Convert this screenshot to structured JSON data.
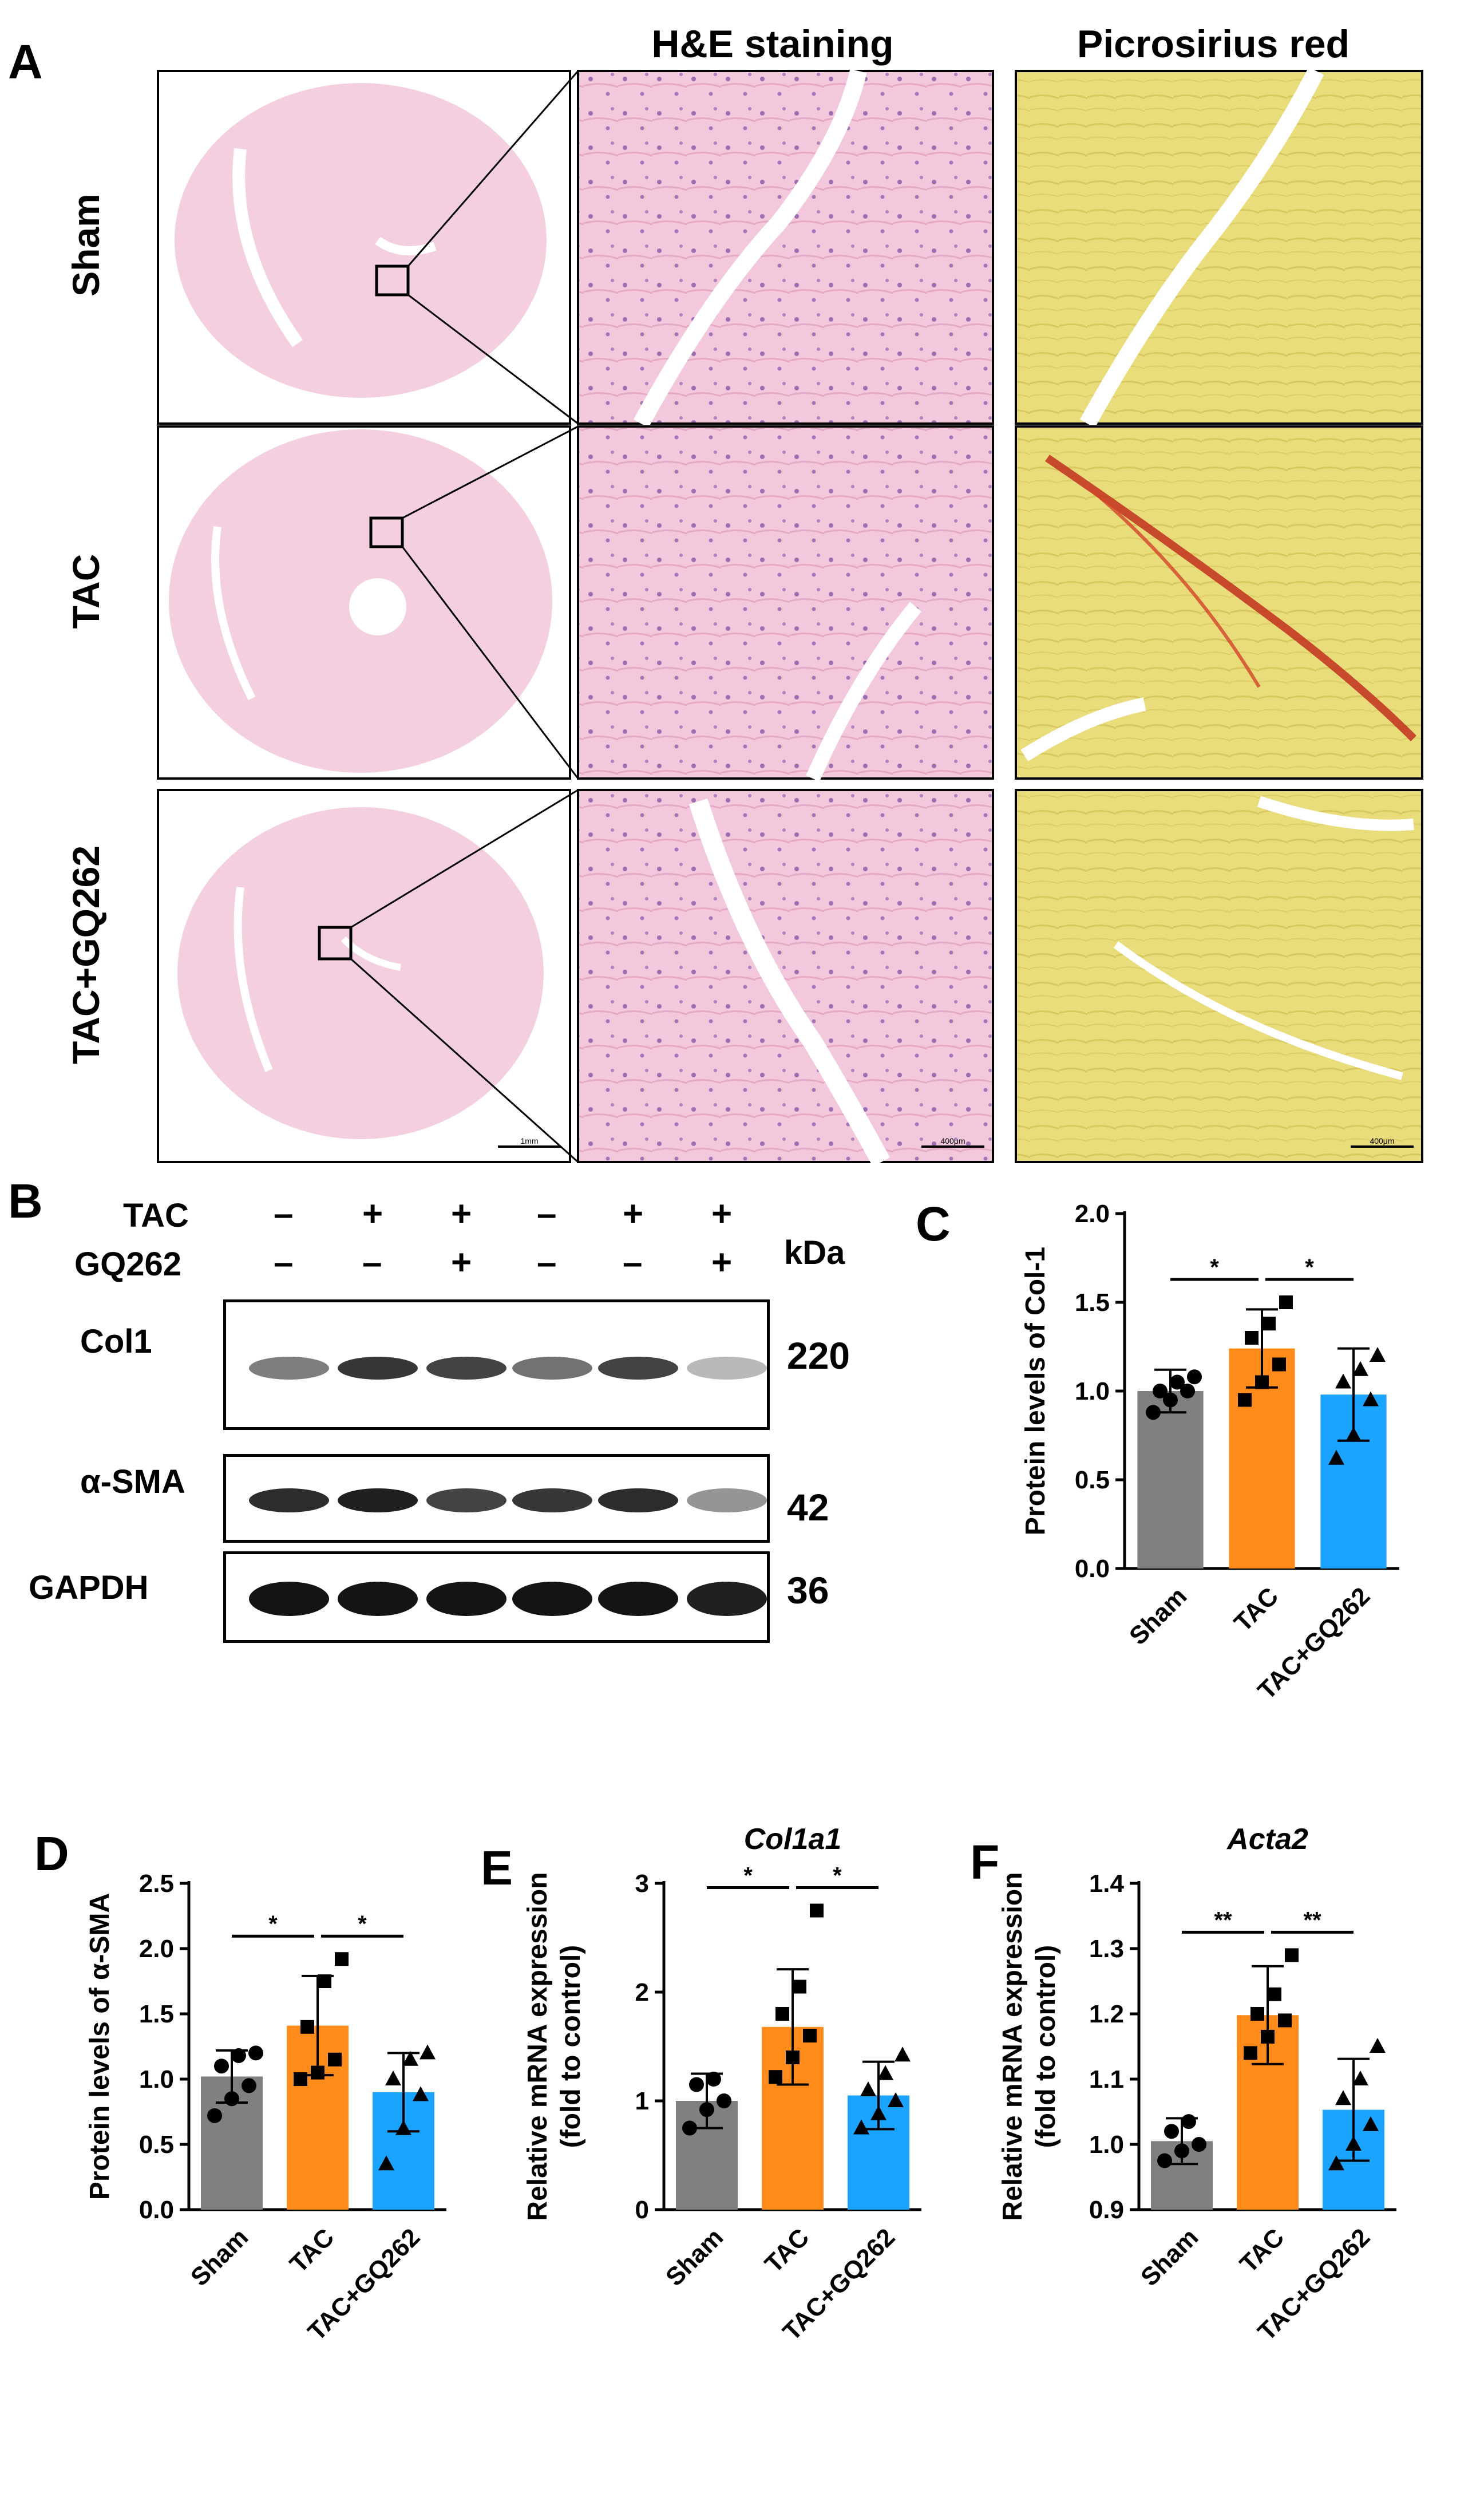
{
  "panels": {
    "A": "A",
    "B": "B",
    "C": "C",
    "D": "D",
    "E": "E",
    "F": "F"
  },
  "histology": {
    "columns": [
      "H&E staining",
      "Picrosirius red"
    ],
    "rows": [
      "Sham",
      "TAC",
      "TAC+GQ262"
    ],
    "scalebars": {
      "overview": "1mm",
      "he_zoom": "400μm",
      "psr": "400μm"
    }
  },
  "western_blot": {
    "treatments": [
      {
        "label": "TAC",
        "values": [
          "–",
          "+",
          "+",
          "–",
          "+",
          "+"
        ]
      },
      {
        "label": "GQ262",
        "values": [
          "–",
          "–",
          "+",
          "–",
          "–",
          "+"
        ]
      }
    ],
    "kda_header": "kDa",
    "blots": [
      {
        "name": "Col1",
        "kda": "220"
      },
      {
        "name": "α-SMA",
        "kda": "42"
      },
      {
        "name": "GAPDH",
        "kda": "36"
      }
    ]
  },
  "colors": {
    "sham": "#808080",
    "tac": "#FF8C1A",
    "gq": "#1AA3FF"
  },
  "chart_data": [
    {
      "id": "C",
      "type": "bar",
      "title": "",
      "ylabel": "Protein levels of Col-1",
      "categories": [
        "Sham",
        "TAC",
        "TAC+GQ262"
      ],
      "values": [
        1.0,
        1.24,
        0.98
      ],
      "sd": [
        0.12,
        0.22,
        0.26
      ],
      "points": [
        [
          0.88,
          0.95,
          1.0,
          1.0,
          1.05,
          1.08
        ],
        [
          0.95,
          1.05,
          1.15,
          1.3,
          1.38,
          1.5
        ],
        [
          0.62,
          0.75,
          0.95,
          1.05,
          1.12,
          1.2
        ]
      ],
      "ylim": [
        0,
        2.0
      ],
      "yticks": [
        "0.0",
        "0.5",
        "1.0",
        "1.5",
        "2.0"
      ],
      "significance": [
        "*",
        "*"
      ]
    },
    {
      "id": "D",
      "type": "bar",
      "title": "",
      "ylabel": "Protein levels of α-SMA",
      "categories": [
        "Sham",
        "TAC",
        "TAC+GQ262"
      ],
      "values": [
        1.02,
        1.41,
        0.9
      ],
      "sd": [
        0.2,
        0.38,
        0.3
      ],
      "points": [
        [
          0.72,
          0.85,
          0.95,
          1.1,
          1.18,
          1.2
        ],
        [
          1.0,
          1.05,
          1.15,
          1.4,
          1.75,
          1.92
        ],
        [
          0.35,
          0.62,
          0.88,
          1.0,
          1.15,
          1.2
        ]
      ],
      "ylim": [
        0,
        2.5
      ],
      "yticks": [
        "0.0",
        "0.5",
        "1.0",
        "1.5",
        "2.0",
        "2.5"
      ],
      "significance": [
        "*",
        "*"
      ]
    },
    {
      "id": "E",
      "type": "bar",
      "title": "Col1a1",
      "ylabel": "Relative mRNA expression",
      "ylabel2": "(fold to control)",
      "categories": [
        "Sham",
        "TAC",
        "TAC+GQ262"
      ],
      "values": [
        1.0,
        1.68,
        1.05
      ],
      "sd": [
        0.25,
        0.53,
        0.31
      ],
      "points": [
        [
          0.75,
          0.92,
          1.0,
          1.15,
          1.2
        ],
        [
          1.22,
          1.4,
          1.6,
          1.8,
          2.05,
          2.75
        ],
        [
          0.75,
          0.88,
          1.0,
          1.1,
          1.25,
          1.42
        ]
      ],
      "ylim": [
        0,
        3
      ],
      "yticks": [
        "0",
        "1",
        "2",
        "3"
      ],
      "significance": [
        "*",
        "*"
      ]
    },
    {
      "id": "F",
      "type": "bar",
      "title": "Acta2",
      "ylabel": "Relative mRNA expression",
      "ylabel2": "(fold to control)",
      "categories": [
        "Sham",
        "TAC",
        "TAC+GQ262"
      ],
      "values": [
        1.005,
        1.198,
        1.053
      ],
      "sd": [
        0.035,
        0.075,
        0.078
      ],
      "points": [
        [
          0.975,
          0.99,
          1.0,
          1.02,
          1.035
        ],
        [
          1.14,
          1.165,
          1.19,
          1.2,
          1.23,
          1.29
        ],
        [
          0.97,
          1.0,
          1.03,
          1.07,
          1.1,
          1.15
        ]
      ],
      "ylim": [
        0.9,
        1.4
      ],
      "yticks": [
        "0.9",
        "1.0",
        "1.1",
        "1.2",
        "1.3",
        "1.4"
      ],
      "significance": [
        "**",
        "**"
      ]
    }
  ]
}
